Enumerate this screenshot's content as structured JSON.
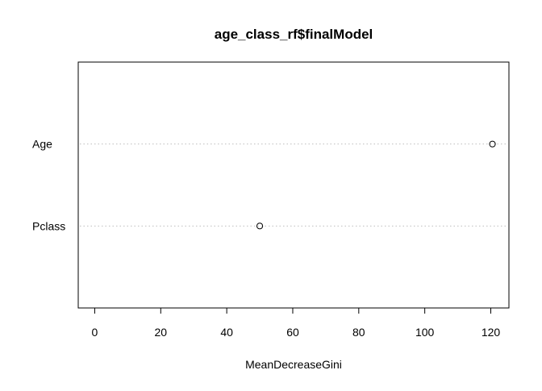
{
  "chart_data": {
    "type": "scatter",
    "subtype": "dotchart",
    "title": "age_class_rf$finalModel",
    "xlabel": "MeanDecreaseGini",
    "ylabel": "",
    "categories": [
      "Age",
      "Pclass"
    ],
    "values": [
      120.5,
      50
    ],
    "xlim": [
      -5,
      125.5
    ],
    "xticks": [
      0,
      20,
      40,
      60,
      80,
      100,
      120
    ],
    "grid": "dotted horizontal guide lines per category",
    "point_marker": "open circle",
    "colors": {
      "axis": "#000000",
      "guide": "#bebebe",
      "point": "#000000"
    }
  }
}
